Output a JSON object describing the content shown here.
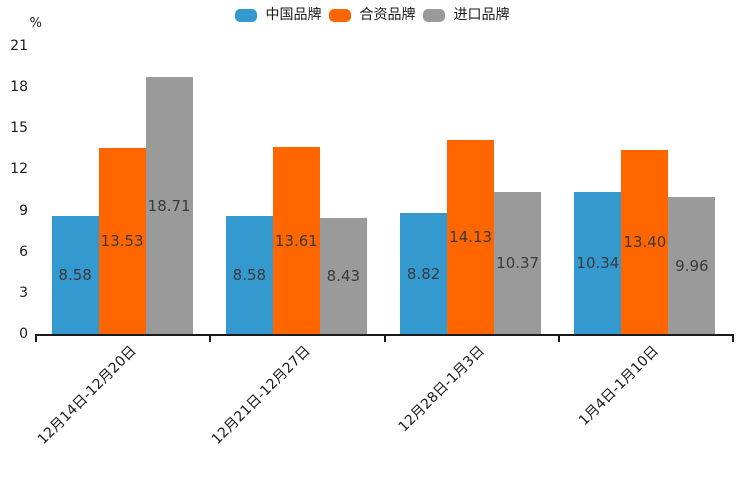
{
  "chart_data": {
    "type": "bar",
    "title": "",
    "unit": "%",
    "xlabel": "",
    "ylabel": "%",
    "categories": [
      "12月14日-12月20日",
      "12月21日-12月27日",
      "12月28日-1月3日",
      "1月4日-1月10日"
    ],
    "series": [
      {
        "name": "中国品牌",
        "color": "#3499CE",
        "values": [
          8.58,
          8.58,
          8.82,
          10.34
        ]
      },
      {
        "name": "合资品牌",
        "color": "#FF6600",
        "values": [
          13.53,
          13.61,
          14.13,
          13.4
        ]
      },
      {
        "name": "进口品牌",
        "color": "#9A9A9A",
        "values": [
          18.71,
          8.43,
          10.37,
          9.96
        ]
      }
    ],
    "value_labels": [
      "8.58",
      "13.53",
      "18.71",
      "8.58",
      "13.61",
      "8.43",
      "8.82",
      "14.13",
      "10.37",
      "10.34",
      "13.40",
      "9.96"
    ],
    "ylim": [
      0,
      21
    ],
    "yticks": [
      0,
      3,
      6,
      9,
      12,
      15,
      18,
      21
    ],
    "grid": false,
    "legend_position": "top-center",
    "value_label_format": "0.00",
    "colors": {
      "background": "#ffffff",
      "axis": "#1a1a1a",
      "tick_label": "#1a1a1a",
      "value_label": "#3a3a3a"
    }
  }
}
